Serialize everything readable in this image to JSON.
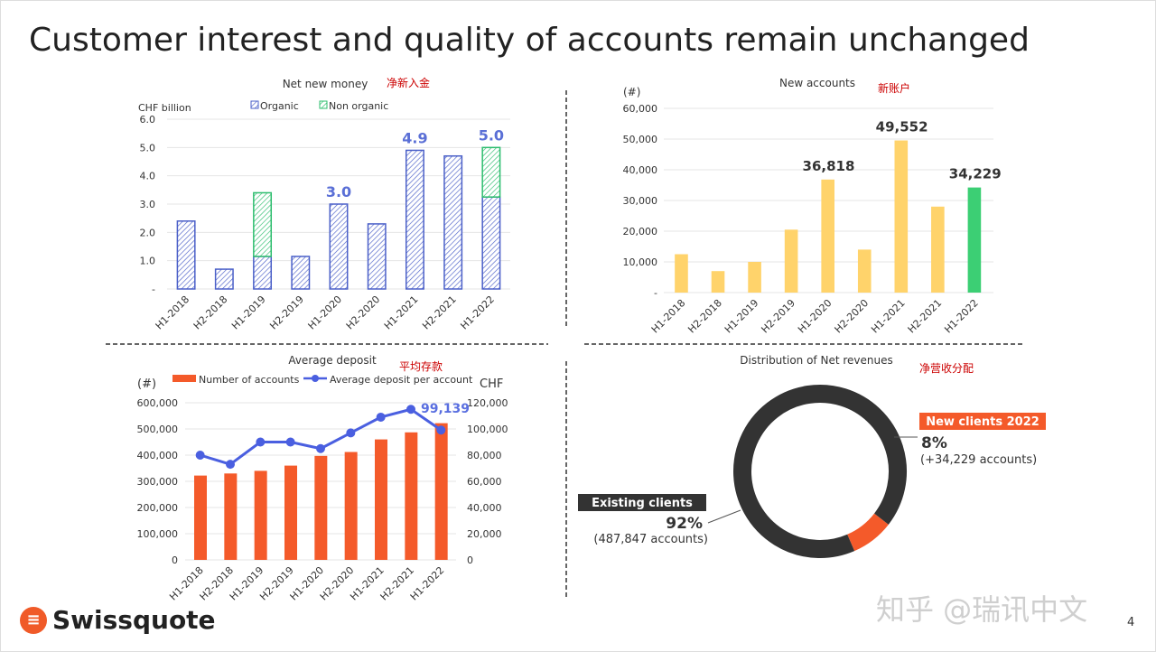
{
  "title": "Customer interest and quality of accounts remain unchanged",
  "page_number": "4",
  "logo_text": "Swissquote",
  "watermark": "知乎 @瑞讯中文",
  "chart_data": [
    {
      "type": "bar",
      "stacked": true,
      "title": "Net new money",
      "annotation": "净新入金",
      "ylabel": "CHF billion",
      "ylim": [
        0,
        6
      ],
      "yticks": [
        "-",
        "1.0",
        "2.0",
        "3.0",
        "4.0",
        "5.0",
        "6.0"
      ],
      "legend": "top",
      "categories": [
        "H1-2018",
        "H2-2018",
        "H1-2019",
        "H2-2019",
        "H1-2020",
        "H2-2020",
        "H1-2021",
        "H2-2021",
        "H1-2022"
      ],
      "series": [
        {
          "name": "Organic",
          "values": [
            2.4,
            0.7,
            1.15,
            1.15,
            3.0,
            2.3,
            4.9,
            4.7,
            3.25
          ],
          "color": "#4a5fc8"
        },
        {
          "name": "Non organic",
          "values": [
            0,
            0,
            2.25,
            0,
            0,
            0,
            0,
            0,
            1.75
          ],
          "color": "#2dbd6e"
        }
      ],
      "data_labels": [
        {
          "index": 4,
          "text": "3.0"
        },
        {
          "index": 6,
          "text": "4.9"
        },
        {
          "index": 8,
          "text": "5.0"
        }
      ]
    },
    {
      "type": "bar",
      "title": "New accounts",
      "annotation": "新账户",
      "ylabel": "(#)",
      "ylim": [
        0,
        60000
      ],
      "yticks": [
        "-",
        "10,000",
        "20,000",
        "30,000",
        "40,000",
        "50,000",
        "60,000"
      ],
      "categories": [
        "H1-2018",
        "H2-2018",
        "H1-2019",
        "H2-2019",
        "H1-2020",
        "H2-2020",
        "H1-2021",
        "H2-2021",
        "H1-2022"
      ],
      "values": [
        12500,
        7000,
        10000,
        20500,
        36818,
        14000,
        49552,
        28000,
        34229
      ],
      "colors": [
        "#ffd36b",
        "#ffd36b",
        "#ffd36b",
        "#ffd36b",
        "#ffd36b",
        "#ffd36b",
        "#ffd36b",
        "#ffd36b",
        "#3ccf74"
      ],
      "data_labels": [
        {
          "index": 4,
          "text": "36,818"
        },
        {
          "index": 6,
          "text": "49,552"
        },
        {
          "index": 8,
          "text": "34,229"
        }
      ]
    },
    {
      "type": "bar+line",
      "title": "Average deposit",
      "annotation": "平均存款",
      "ylabel": "(#)",
      "y2label": "CHF",
      "ylim": [
        0,
        600000
      ],
      "y2lim": [
        0,
        120000
      ],
      "yticks": [
        "0",
        "100,000",
        "200,000",
        "300,000",
        "400,000",
        "500,000",
        "600,000"
      ],
      "y2ticks": [
        "0",
        "20,000",
        "40,000",
        "60,000",
        "80,000",
        "100,000",
        "120,000"
      ],
      "legend": "top",
      "categories": [
        "H1-2018",
        "H2-2018",
        "H1-2019",
        "H2-2019",
        "H1-2020",
        "H2-2020",
        "H1-2021",
        "H2-2021",
        "H1-2022"
      ],
      "series": [
        {
          "name": "Number of accounts",
          "type": "bar",
          "values": [
            322000,
            330000,
            340000,
            360000,
            397000,
            412000,
            460000,
            487000,
            522000
          ],
          "color": "#f45a2a"
        },
        {
          "name": "Average deposit per account",
          "type": "line",
          "values": [
            80000,
            73000,
            90000,
            90000,
            85000,
            97000,
            109000,
            115000,
            99139
          ],
          "color": "#4a5fe0"
        }
      ],
      "data_labels": [
        {
          "index": 8,
          "text": "99,139"
        }
      ]
    },
    {
      "type": "pie",
      "donut": true,
      "title": "Distribution of Net revenues",
      "annotation": "净营收分配",
      "slices": [
        {
          "name": "New clients 2022",
          "value": 8,
          "label": "8%",
          "sub": "(+34,229 accounts)",
          "color": "#f45a2a"
        },
        {
          "name": "Existing clients",
          "value": 92,
          "label": "92%",
          "sub": "(487,847 accounts)",
          "color": "#333333"
        }
      ]
    }
  ]
}
